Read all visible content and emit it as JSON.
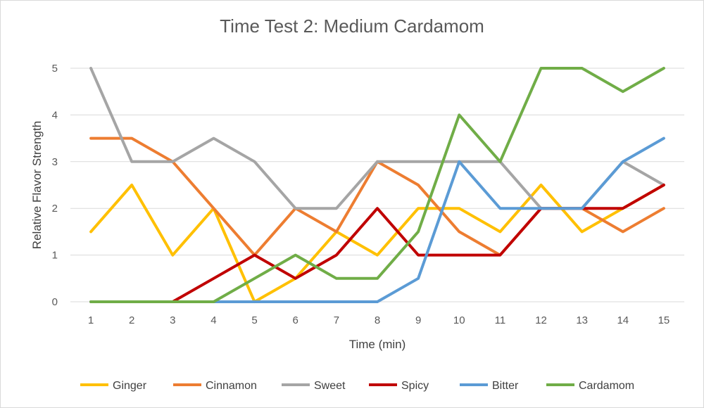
{
  "chart_data": {
    "type": "line",
    "title": "Time Test 2: Medium Cardamom",
    "xlabel": "Time (min)",
    "ylabel": "Relative Flavor Strength",
    "x": [
      1,
      2,
      3,
      4,
      5,
      6,
      7,
      8,
      9,
      10,
      11,
      12,
      13,
      14,
      15
    ],
    "ylim": [
      0,
      5
    ],
    "yticks": [
      0,
      1,
      2,
      3,
      4,
      5
    ],
    "grid": true,
    "legend": "bottom",
    "series": [
      {
        "name": "Ginger",
        "color": "#FFC000",
        "values": [
          1.5,
          2.5,
          1,
          2,
          0,
          0.5,
          1.5,
          1,
          2,
          2,
          1.5,
          2.5,
          1.5,
          2,
          2.5
        ]
      },
      {
        "name": "Cinnamon",
        "color": "#ED7D31",
        "values": [
          3.5,
          3.5,
          3,
          2,
          1,
          2,
          1.5,
          3,
          2.5,
          1.5,
          1,
          2,
          2,
          1.5,
          2
        ]
      },
      {
        "name": "Sweet",
        "color": "#A5A5A5",
        "values": [
          5,
          3,
          3,
          3.5,
          3,
          2,
          2,
          3,
          3,
          3,
          3,
          2,
          2,
          3,
          2.5
        ]
      },
      {
        "name": "Spicy",
        "color": "#C00000",
        "values": [
          0,
          0,
          0,
          0.5,
          1,
          0.5,
          1,
          2,
          1,
          1,
          1,
          2,
          2,
          2,
          2.5
        ]
      },
      {
        "name": "Bitter",
        "color": "#5B9BD5",
        "values": [
          0,
          0,
          0,
          0,
          0,
          0,
          0,
          0,
          0.5,
          3,
          2,
          2,
          2,
          3,
          3.5
        ]
      },
      {
        "name": "Cardamom",
        "color": "#70AD47",
        "values": [
          0,
          0,
          0,
          0,
          0.5,
          1,
          0.5,
          0.5,
          1.5,
          4,
          3,
          5,
          5,
          4.5,
          5
        ]
      }
    ]
  }
}
